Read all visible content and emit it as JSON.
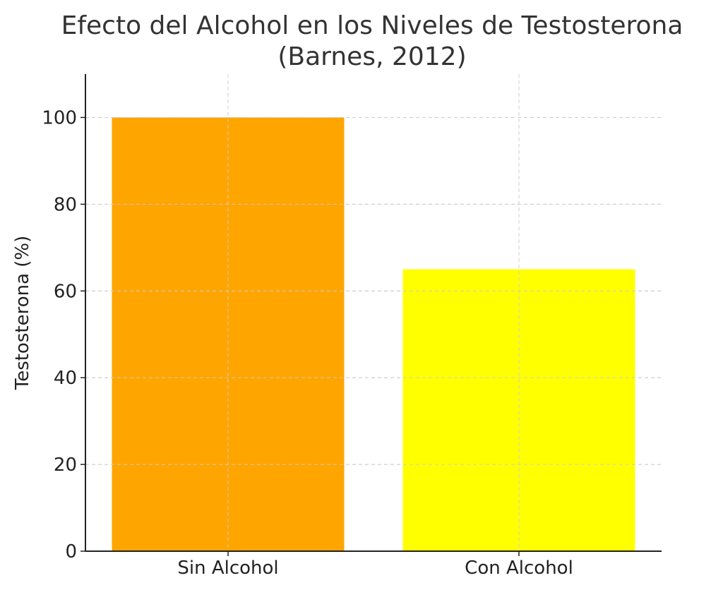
{
  "chart_data": {
    "type": "bar",
    "title": "Efecto del Alcohol en los Niveles de Testosterona\n(Barnes, 2012)",
    "title_lines": [
      "Efecto del Alcohol en los Niveles de Testosterona",
      "(Barnes, 2012)"
    ],
    "xlabel": "",
    "ylabel": "Testosterona (%)",
    "categories": [
      "Sin Alcohol",
      "Con Alcohol"
    ],
    "values": [
      100,
      65
    ],
    "colors": [
      "#FFA500",
      "#FFFF00"
    ],
    "ylim": [
      0,
      110
    ],
    "yticks": [
      0,
      20,
      40,
      60,
      80,
      100
    ],
    "grid": true
  }
}
